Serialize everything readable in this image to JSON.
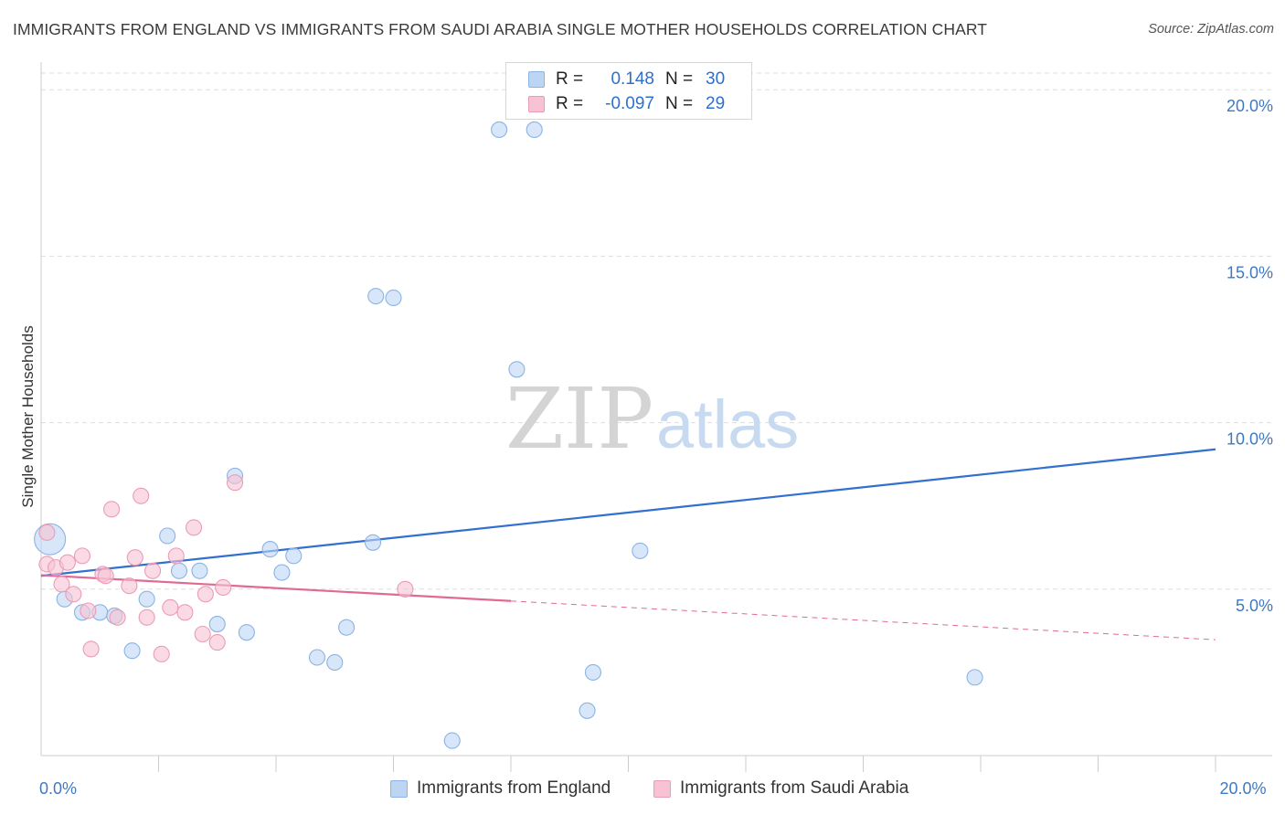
{
  "title": "IMMIGRANTS FROM ENGLAND VS IMMIGRANTS FROM SAUDI ARABIA SINGLE MOTHER HOUSEHOLDS CORRELATION CHART",
  "source": "Source: ZipAtlas.com",
  "legend": {
    "rows": [
      {
        "r_label": "R =",
        "r_value": "0.148",
        "n_label": "N =",
        "n_value": "30"
      },
      {
        "r_label": "R =",
        "r_value": "-0.097",
        "n_label": "N =",
        "n_value": "29"
      }
    ]
  },
  "watermark": {
    "zip": "ZIP",
    "atlas": "atlas"
  },
  "colors": {
    "blue_fill": "#bcd5f3",
    "blue_stroke": "#8cb3e3",
    "blue_line": "#3170cf",
    "pink_fill": "#f7c3d4",
    "pink_stroke": "#ec9bb5",
    "pink_line": "#e06a95",
    "tick_text": "#3f79c4",
    "grid": "#dddddd"
  },
  "chart_data": {
    "type": "scatter",
    "title": "IMMIGRANTS FROM ENGLAND VS IMMIGRANTS FROM SAUDI ARABIA SINGLE MOTHER HOUSEHOLDS CORRELATION CHART",
    "xlabel": "",
    "ylabel": "Single Mother Households",
    "xlim": [
      0,
      20
    ],
    "ylim": [
      0,
      20.5
    ],
    "x_tick_labels": [
      {
        "value": 0,
        "label": "0.0%"
      },
      {
        "value": 20,
        "label": "20.0%"
      }
    ],
    "y_ticks": [
      {
        "value": 5,
        "label": "5.0%"
      },
      {
        "value": 10,
        "label": "10.0%"
      },
      {
        "value": 15,
        "label": "15.0%"
      },
      {
        "value": 20,
        "label": "20.0%"
      }
    ],
    "x_minor_ticks": [
      2,
      4,
      6,
      8,
      10,
      12,
      14,
      16,
      18,
      20
    ],
    "series": [
      {
        "name": "Immigrants from England",
        "color": "blue",
        "r": 0.148,
        "n": 30,
        "trend": {
          "x0": 0,
          "y0": 5.4,
          "x1": 20,
          "y1": 9.2,
          "dash_from": null
        },
        "points": [
          {
            "x": 0.15,
            "y": 6.5,
            "big": true
          },
          {
            "x": 7.8,
            "y": 18.8
          },
          {
            "x": 8.4,
            "y": 18.8
          },
          {
            "x": 5.7,
            "y": 13.8
          },
          {
            "x": 6.0,
            "y": 13.75
          },
          {
            "x": 8.1,
            "y": 11.6
          },
          {
            "x": 3.3,
            "y": 8.4
          },
          {
            "x": 2.15,
            "y": 6.6
          },
          {
            "x": 3.9,
            "y": 6.2
          },
          {
            "x": 4.3,
            "y": 6.0
          },
          {
            "x": 5.65,
            "y": 6.4
          },
          {
            "x": 10.2,
            "y": 6.15
          },
          {
            "x": 2.35,
            "y": 5.55
          },
          {
            "x": 2.7,
            "y": 5.55
          },
          {
            "x": 4.1,
            "y": 5.5
          },
          {
            "x": 0.4,
            "y": 4.7
          },
          {
            "x": 1.8,
            "y": 4.7
          },
          {
            "x": 0.7,
            "y": 4.3
          },
          {
            "x": 1.0,
            "y": 4.3
          },
          {
            "x": 1.25,
            "y": 4.2
          },
          {
            "x": 3.0,
            "y": 3.95
          },
          {
            "x": 5.2,
            "y": 3.85
          },
          {
            "x": 3.5,
            "y": 3.7
          },
          {
            "x": 1.55,
            "y": 3.15
          },
          {
            "x": 4.7,
            "y": 2.95
          },
          {
            "x": 5.0,
            "y": 2.8
          },
          {
            "x": 9.4,
            "y": 2.5
          },
          {
            "x": 15.9,
            "y": 2.35
          },
          {
            "x": 9.3,
            "y": 1.35
          },
          {
            "x": 7.0,
            "y": 0.45
          }
        ]
      },
      {
        "name": "Immigrants from Saudi Arabia",
        "color": "pink",
        "r": -0.097,
        "n": 29,
        "trend": {
          "x0": 0,
          "y0": 5.42,
          "x1": 20,
          "y1": 3.48,
          "dash_from": 8.0
        },
        "points": [
          {
            "x": 0.1,
            "y": 6.7
          },
          {
            "x": 3.3,
            "y": 8.2
          },
          {
            "x": 1.7,
            "y": 7.8
          },
          {
            "x": 1.2,
            "y": 7.4
          },
          {
            "x": 2.6,
            "y": 6.85
          },
          {
            "x": 0.7,
            "y": 6.0
          },
          {
            "x": 1.6,
            "y": 5.95
          },
          {
            "x": 2.3,
            "y": 6.0
          },
          {
            "x": 0.1,
            "y": 5.75
          },
          {
            "x": 0.25,
            "y": 5.65
          },
          {
            "x": 0.45,
            "y": 5.8
          },
          {
            "x": 1.05,
            "y": 5.45
          },
          {
            "x": 1.1,
            "y": 5.4
          },
          {
            "x": 1.9,
            "y": 5.55
          },
          {
            "x": 0.35,
            "y": 5.15
          },
          {
            "x": 1.5,
            "y": 5.1
          },
          {
            "x": 3.1,
            "y": 5.05
          },
          {
            "x": 6.2,
            "y": 5.0
          },
          {
            "x": 0.55,
            "y": 4.85
          },
          {
            "x": 2.8,
            "y": 4.85
          },
          {
            "x": 2.2,
            "y": 4.45
          },
          {
            "x": 2.45,
            "y": 4.3
          },
          {
            "x": 0.8,
            "y": 4.35
          },
          {
            "x": 1.3,
            "y": 4.15
          },
          {
            "x": 1.8,
            "y": 4.15
          },
          {
            "x": 2.75,
            "y": 3.65
          },
          {
            "x": 3.0,
            "y": 3.4
          },
          {
            "x": 0.85,
            "y": 3.2
          },
          {
            "x": 2.05,
            "y": 3.05
          }
        ]
      }
    ]
  }
}
